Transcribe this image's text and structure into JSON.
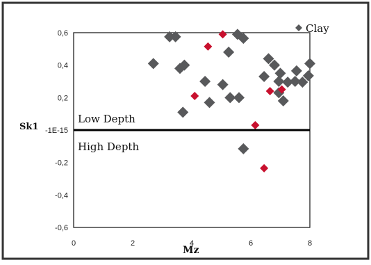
{
  "chart_data": {
    "type": "scatter",
    "xlabel": "Mz",
    "ylabel": "Sk1",
    "xlim": [
      0,
      8
    ],
    "ylim": [
      -0.6,
      0.6
    ],
    "x_ticks": [
      "0",
      "2",
      "4",
      "6",
      "8"
    ],
    "y_ticks": [
      "-0,6",
      "-0,4",
      "-0,2",
      "-1E-15",
      "0,2",
      "0,4",
      "0,6"
    ],
    "legend": {
      "label": "Clay",
      "placement": "top-right",
      "color": "#58595b"
    },
    "annotations": {
      "low": "Low Depth",
      "high": "High Depth",
      "divider_y": 0
    },
    "colors": {
      "gray": "#58595b",
      "red": "#c8102e",
      "frame": "#222222"
    },
    "grid": false,
    "series": [
      {
        "color_key": "gray",
        "points": [
          [
            2.7,
            0.41
          ],
          [
            3.25,
            0.575
          ],
          [
            3.45,
            0.575
          ],
          [
            3.6,
            0.38
          ],
          [
            3.75,
            0.4
          ],
          [
            3.7,
            0.11
          ],
          [
            4.45,
            0.3
          ],
          [
            4.6,
            0.17
          ],
          [
            5.05,
            0.28
          ],
          [
            5.25,
            0.48
          ],
          [
            5.3,
            0.2
          ],
          [
            5.55,
            0.59
          ],
          [
            5.6,
            0.2
          ],
          [
            5.75,
            0.565
          ],
          [
            5.75,
            -0.115
          ],
          [
            6.45,
            0.33
          ],
          [
            6.6,
            0.44
          ],
          [
            6.8,
            0.4
          ],
          [
            6.95,
            0.23
          ],
          [
            6.95,
            0.3
          ],
          [
            7.0,
            0.35
          ],
          [
            7.1,
            0.18
          ],
          [
            7.25,
            0.295
          ],
          [
            7.5,
            0.3
          ],
          [
            7.55,
            0.365
          ],
          [
            7.75,
            0.295
          ],
          [
            7.95,
            0.335
          ],
          [
            8.0,
            0.41
          ]
        ]
      },
      {
        "color_key": "red",
        "points": [
          [
            4.1,
            0.21
          ],
          [
            4.55,
            0.515
          ],
          [
            5.05,
            0.59
          ],
          [
            6.15,
            0.03
          ],
          [
            6.45,
            -0.235
          ],
          [
            6.65,
            0.24
          ],
          [
            7.05,
            0.25
          ]
        ]
      }
    ]
  }
}
